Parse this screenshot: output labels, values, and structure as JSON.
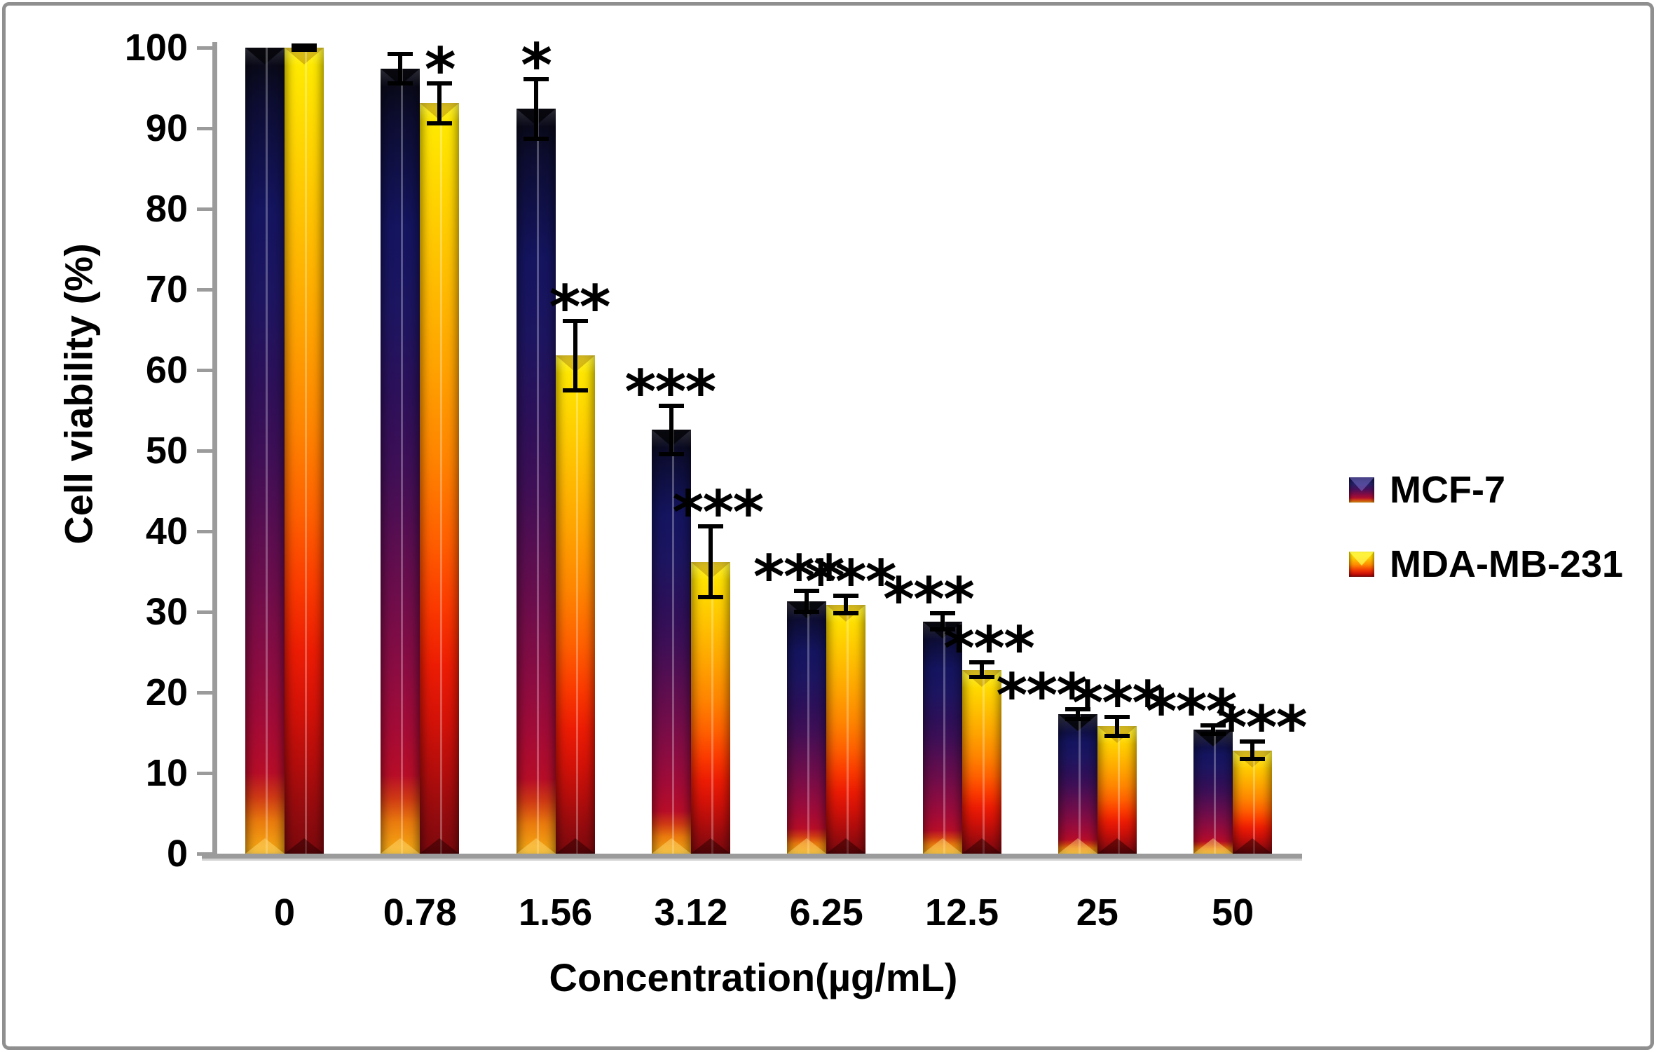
{
  "figure": {
    "frame_color": "#8f8f8f",
    "background": "#ffffff"
  },
  "chart_data": {
    "type": "bar",
    "title": "",
    "xlabel": "Concentration(µg/mL)",
    "ylabel": "Cell viability (%)",
    "ylim": [
      0,
      100
    ],
    "ytick_step": 10,
    "yticks": [
      0,
      10,
      20,
      30,
      40,
      50,
      60,
      70,
      80,
      90,
      100
    ],
    "categories": [
      "0",
      "0.78",
      "1.56",
      "3.12",
      "6.25",
      "12.5",
      "25",
      "50"
    ],
    "grid": false,
    "legend_position": "right",
    "axis_color": "#9b9b9b",
    "error_bar_color": "#000000",
    "significance_symbols_shown": [
      "*",
      "**",
      "***"
    ],
    "series": [
      {
        "name": "MCF-7",
        "values": [
          100,
          97.4,
          92.4,
          52.6,
          31.3,
          28.8,
          17.3,
          15.4
        ],
        "errors": [
          0,
          1.8,
          3.7,
          3.0,
          1.3,
          1.0,
          0.6,
          0.5
        ],
        "significance": [
          "",
          "",
          "*",
          "***",
          "***",
          "***",
          "***",
          "***"
        ],
        "gradient": [
          [
            0,
            "#08080e"
          ],
          [
            7,
            "#0d0d33"
          ],
          [
            20,
            "#14145f"
          ],
          [
            31,
            "#1d1560"
          ],
          [
            42,
            "#2d1059"
          ],
          [
            51,
            "#3f0f56"
          ],
          [
            59,
            "#560e51"
          ],
          [
            68,
            "#700d4a"
          ],
          [
            77,
            "#8c0c41"
          ],
          [
            84,
            "#a30b36"
          ],
          [
            90,
            "#b70d28"
          ],
          [
            93,
            "#cf3a14"
          ],
          [
            96,
            "#ea7b0e"
          ],
          [
            100,
            "#f6ad14"
          ]
        ]
      },
      {
        "name": "MDA-MB-231",
        "values": [
          100,
          93.1,
          61.8,
          36.2,
          30.9,
          22.8,
          15.8,
          12.8
        ],
        "errors": [
          0.3,
          2.5,
          4.3,
          4.4,
          1.1,
          0.9,
          1.2,
          1.1
        ],
        "significance": [
          "",
          "*",
          "**",
          "***",
          "***",
          "***",
          "***",
          "***"
        ],
        "gradient": [
          [
            0,
            "#ffee00"
          ],
          [
            10,
            "#ffd900"
          ],
          [
            22,
            "#ffc000"
          ],
          [
            35,
            "#ffa300"
          ],
          [
            47,
            "#ff8500"
          ],
          [
            58,
            "#ff6000"
          ],
          [
            67,
            "#fb3a00"
          ],
          [
            75,
            "#ec1c04"
          ],
          [
            82,
            "#d41208"
          ],
          [
            89,
            "#b30d0c"
          ],
          [
            95,
            "#930b0e"
          ],
          [
            100,
            "#7c090d"
          ]
        ]
      }
    ]
  }
}
